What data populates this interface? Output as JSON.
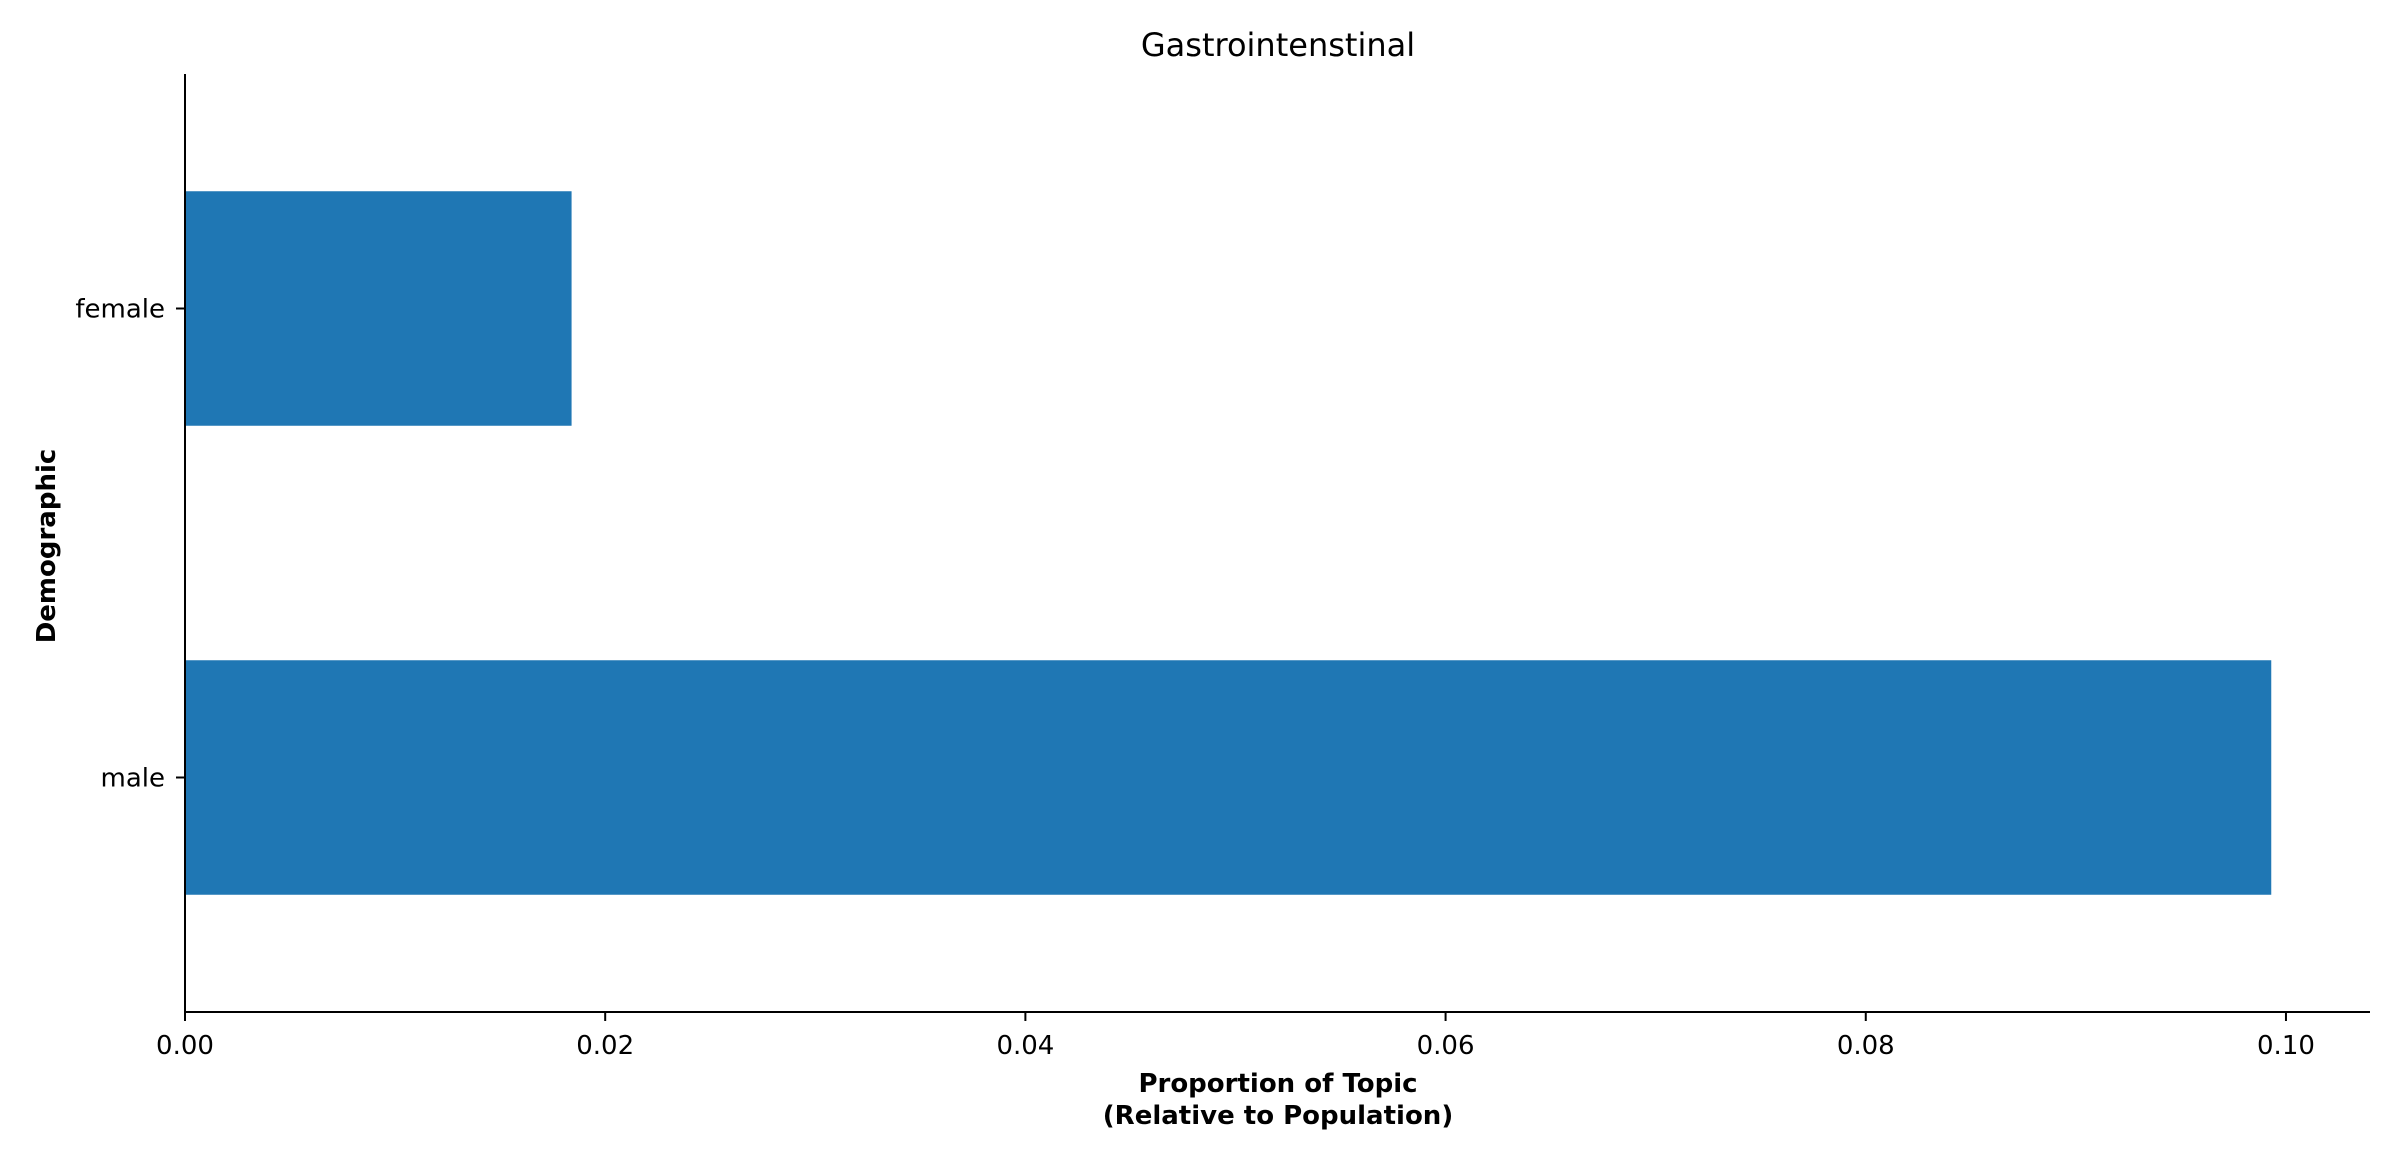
{
  "chart_data": {
    "type": "bar",
    "orientation": "horizontal",
    "title": "Gastrointenstinal",
    "xlabel_lines": [
      "Proportion of Topic",
      "(Relative to Population)"
    ],
    "ylabel": "Demographic",
    "categories": [
      "female",
      "male"
    ],
    "values": [
      0.0184,
      0.0993
    ],
    "xlim": [
      0.0,
      0.104
    ],
    "xticks": [
      0.0,
      0.02,
      0.04,
      0.06,
      0.08,
      0.1
    ],
    "xtick_labels": [
      "0.00",
      "0.02",
      "0.04",
      "0.06",
      "0.08",
      "0.10"
    ],
    "bar_color": "#1f77b4",
    "grid": false,
    "legend": "none"
  }
}
